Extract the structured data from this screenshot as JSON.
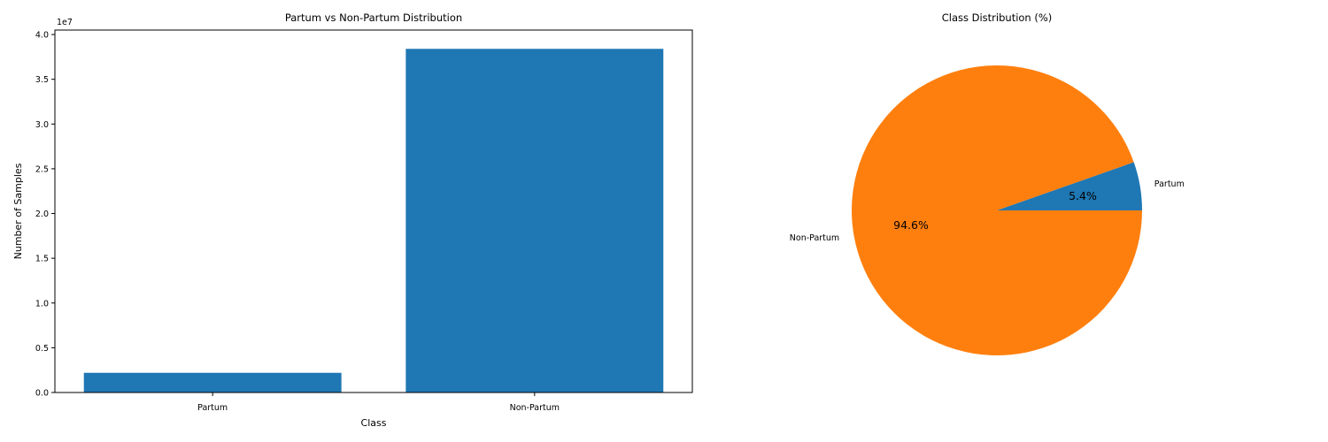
{
  "chart_data": [
    {
      "type": "bar",
      "title": "Partum vs Non-Partum Distribution",
      "xlabel": "Class",
      "ylabel": "Number of Samples",
      "offset_label": "1e7",
      "categories": [
        "Partum",
        "Non-Partum"
      ],
      "values": [
        2200000,
        38400000
      ],
      "ylim": [
        0,
        40500000
      ],
      "yticks": [
        0,
        5000000,
        10000000,
        15000000,
        20000000,
        25000000,
        30000000,
        35000000,
        40000000
      ],
      "ytick_labels": [
        "0.0",
        "0.5",
        "1.0",
        "1.5",
        "2.0",
        "2.5",
        "3.0",
        "3.5",
        "4.0"
      ],
      "bar_color": "#1f77b4",
      "grid": false
    },
    {
      "type": "pie",
      "title": "Class Distribution (%)",
      "labels": [
        "Partum",
        "Non-Partum"
      ],
      "values": [
        5.4,
        94.6
      ],
      "pct_labels": [
        "5.4%",
        "94.6%"
      ],
      "colors": [
        "#1f77b4",
        "#ff7f0e"
      ]
    }
  ]
}
